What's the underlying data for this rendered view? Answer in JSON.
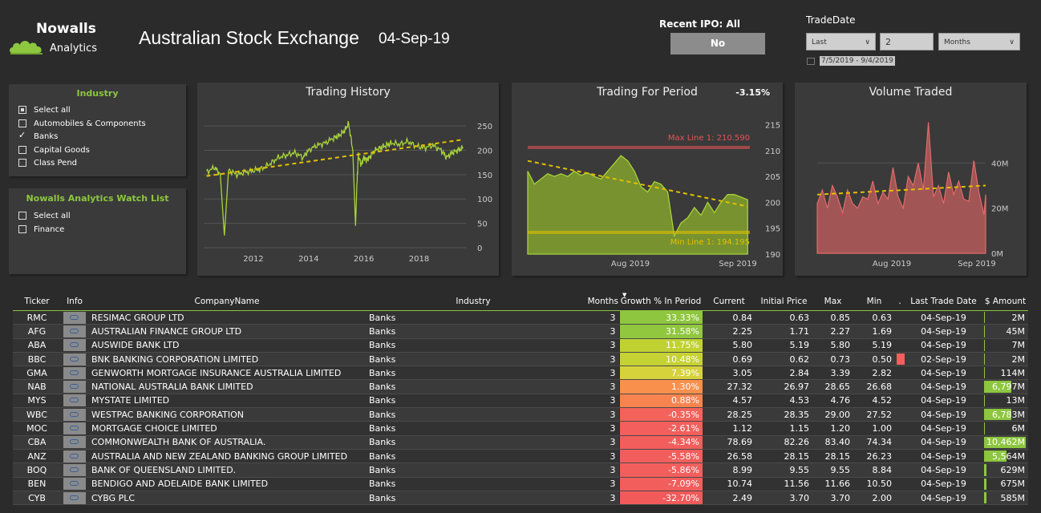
{
  "brand": {
    "name": "Nowalls",
    "sub": "Analytics"
  },
  "header": {
    "title": "Australian Stock Exchange",
    "date": "04-Sep-19"
  },
  "ipo": {
    "label": "Recent IPO: All",
    "button": "No"
  },
  "tradedate": {
    "label": "TradeDate",
    "mode": "Last",
    "count": "2",
    "unit": "Months",
    "range": "7/5/2019 - 9/4/2019"
  },
  "industry_filter": {
    "title": "Industry",
    "items": [
      {
        "label": "Select all",
        "state": "partial"
      },
      {
        "label": "Automobiles & Components",
        "state": "off"
      },
      {
        "label": "Banks",
        "state": "checked"
      },
      {
        "label": "Capital Goods",
        "state": "off"
      },
      {
        "label": "Class Pend",
        "state": "off"
      }
    ]
  },
  "watch_filter": {
    "title": "Nowalls Analytics Watch List",
    "items": [
      {
        "label": "Select all",
        "state": "off"
      },
      {
        "label": "Finance",
        "state": "off"
      }
    ]
  },
  "colors": {
    "accent": "#8dc63f",
    "max_line": "#e05555",
    "min_line": "#e3c000",
    "trend": "#e3c000",
    "volume": "#e36a6a"
  },
  "chart_data": [
    {
      "type": "line",
      "title": "Trading History",
      "x_ticks": [
        "2012",
        "2014",
        "2016",
        "2018"
      ],
      "y_ticks": [
        0,
        50,
        100,
        150,
        200,
        250
      ],
      "ylim": [
        0,
        260
      ],
      "xlim": [
        2010.2,
        2019.7
      ],
      "x": [
        2010.3,
        2010.6,
        2010.8,
        2010.95,
        2011.1,
        2011.4,
        2011.7,
        2012.0,
        2012.3,
        2012.6,
        2012.9,
        2013.2,
        2013.5,
        2013.8,
        2014.0,
        2014.3,
        2014.6,
        2014.9,
        2015.1,
        2015.3,
        2015.45,
        2015.6,
        2015.7,
        2015.75,
        2015.8,
        2015.9,
        2016.0,
        2016.1,
        2016.2,
        2016.4,
        2016.6,
        2016.8,
        2017.0,
        2017.3,
        2017.6,
        2017.9,
        2018.2,
        2018.5,
        2018.8,
        2019.0,
        2019.2,
        2019.4,
        2019.6
      ],
      "y": [
        155,
        165,
        150,
        25,
        160,
        150,
        155,
        158,
        162,
        172,
        185,
        190,
        195,
        185,
        200,
        210,
        215,
        225,
        230,
        240,
        255,
        200,
        45,
        130,
        190,
        170,
        185,
        180,
        185,
        200,
        205,
        210,
        215,
        212,
        218,
        208,
        205,
        210,
        200,
        185,
        195,
        200,
        205
      ],
      "trend": {
        "x": [
          2010.3,
          2019.6
        ],
        "y": [
          147,
          222
        ]
      }
    },
    {
      "type": "area",
      "title": "Trading For Period",
      "annotation": "-3.15%",
      "x_ticks": [
        "Aug 2019",
        "Sep 2019"
      ],
      "y_ticks": [
        190,
        195,
        200,
        205,
        210,
        215
      ],
      "ylim": [
        190,
        216
      ],
      "xlim": [
        0,
        1
      ],
      "x": [
        0,
        0.03,
        0.06,
        0.09,
        0.12,
        0.15,
        0.18,
        0.21,
        0.24,
        0.27,
        0.3,
        0.33,
        0.36,
        0.39,
        0.42,
        0.45,
        0.48,
        0.51,
        0.54,
        0.57,
        0.6,
        0.63,
        0.66,
        0.69,
        0.72,
        0.75,
        0.78,
        0.81,
        0.84,
        0.87,
        0.9,
        0.93,
        0.96,
        0.99
      ],
      "y": [
        206,
        203.5,
        204.5,
        205.5,
        205,
        205.5,
        205,
        206,
        205.2,
        205.7,
        205,
        204.5,
        206,
        207.5,
        209,
        208,
        206,
        203,
        202,
        204,
        203.5,
        202,
        193.5,
        196,
        197,
        199,
        197.5,
        200,
        198,
        200,
        201.5,
        201.5,
        201,
        200.5
      ],
      "max_line": {
        "value": 210.59,
        "label": "Max Line 1: 210.590"
      },
      "min_line": {
        "value": 194.195,
        "label": "Min Line 1: 194.195"
      },
      "trend": {
        "x": [
          0,
          0.99
        ],
        "y": [
          208,
          199.2
        ]
      }
    },
    {
      "type": "area",
      "title": "Volume Traded",
      "x_ticks": [
        "Aug 2019",
        "Sep 2019"
      ],
      "y_ticks_labels": [
        "0M",
        "20M",
        "40M"
      ],
      "y_ticks": [
        0,
        20,
        40
      ],
      "ylim": [
        0,
        60
      ],
      "xlim": [
        0,
        1
      ],
      "x": [
        0,
        0.03,
        0.06,
        0.09,
        0.12,
        0.15,
        0.18,
        0.21,
        0.24,
        0.27,
        0.3,
        0.33,
        0.36,
        0.39,
        0.42,
        0.45,
        0.48,
        0.51,
        0.54,
        0.57,
        0.6,
        0.63,
        0.66,
        0.69,
        0.72,
        0.75,
        0.78,
        0.81,
        0.84,
        0.87,
        0.9,
        0.93,
        0.96,
        0.99,
        1.0
      ],
      "y": [
        22,
        28,
        20,
        30,
        25,
        18,
        28,
        22,
        20,
        25,
        24,
        32,
        22,
        27,
        24,
        38,
        25,
        20,
        34,
        30,
        40,
        28,
        58,
        25,
        30,
        22,
        36,
        26,
        32,
        24,
        23,
        41,
        27,
        17,
        26
      ],
      "trend": {
        "x": [
          0,
          1
        ],
        "y": [
          26,
          30
        ]
      }
    }
  ],
  "table": {
    "columns": [
      "Ticker",
      "Info",
      "CompanyName",
      "Industry",
      "Months",
      "Growth % In Period",
      "Current",
      "Initial Price",
      "Max",
      "Min",
      ".",
      "Last Trade Date",
      "$ Amount"
    ],
    "rows": [
      {
        "ticker": "RMC",
        "company": "RESIMAC GROUP LTD",
        "industry": "Banks",
        "months": "3",
        "growth": "33.33%",
        "growth_value": 33.33,
        "current": "0.84",
        "initial": "0.63",
        "max": "0.85",
        "min": "0.63",
        "flag": false,
        "last": "04-Sep-19",
        "amount": "2M",
        "amount_value": 2
      },
      {
        "ticker": "AFG",
        "company": "AUSTRALIAN FINANCE GROUP LTD",
        "industry": "Banks",
        "months": "3",
        "growth": "31.58%",
        "growth_value": 31.58,
        "current": "2.25",
        "initial": "1.71",
        "max": "2.27",
        "min": "1.69",
        "flag": false,
        "last": "04-Sep-19",
        "amount": "45M",
        "amount_value": 45
      },
      {
        "ticker": "ABA",
        "company": "AUSWIDE BANK LTD",
        "industry": "Banks",
        "months": "3",
        "growth": "11.75%",
        "growth_value": 11.75,
        "current": "5.80",
        "initial": "5.19",
        "max": "5.80",
        "min": "5.19",
        "flag": false,
        "last": "04-Sep-19",
        "amount": "7M",
        "amount_value": 7
      },
      {
        "ticker": "BBC",
        "company": "BNK BANKING CORPORATION LIMITED",
        "industry": "Banks",
        "months": "3",
        "growth": "10.48%",
        "growth_value": 10.48,
        "current": "0.69",
        "initial": "0.62",
        "max": "0.73",
        "min": "0.50",
        "flag": true,
        "last": "02-Sep-19",
        "amount": "2M",
        "amount_value": 2
      },
      {
        "ticker": "GMA",
        "company": "GENWORTH MORTGAGE INSURANCE AUSTRALIA LIMITED",
        "industry": "Banks",
        "months": "3",
        "growth": "7.39%",
        "growth_value": 7.39,
        "current": "3.05",
        "initial": "2.84",
        "max": "3.39",
        "min": "2.82",
        "flag": false,
        "last": "04-Sep-19",
        "amount": "114M",
        "amount_value": 114
      },
      {
        "ticker": "NAB",
        "company": "NATIONAL AUSTRALIA BANK LIMITED",
        "industry": "Banks",
        "months": "3",
        "growth": "1.30%",
        "growth_value": 1.3,
        "current": "27.32",
        "initial": "26.97",
        "max": "28.65",
        "min": "26.68",
        "flag": false,
        "last": "04-Sep-19",
        "amount": "6,797M",
        "amount_value": 6797
      },
      {
        "ticker": "MYS",
        "company": "MYSTATE LIMITED",
        "industry": "Banks",
        "months": "3",
        "growth": "0.88%",
        "growth_value": 0.88,
        "current": "4.57",
        "initial": "4.53",
        "max": "4.76",
        "min": "4.52",
        "flag": false,
        "last": "04-Sep-19",
        "amount": "13M",
        "amount_value": 13
      },
      {
        "ticker": "WBC",
        "company": "WESTPAC BANKING CORPORATION",
        "industry": "Banks",
        "months": "3",
        "growth": "-0.35%",
        "growth_value": -0.35,
        "current": "28.25",
        "initial": "28.35",
        "max": "29.00",
        "min": "27.52",
        "flag": false,
        "last": "04-Sep-19",
        "amount": "6,783M",
        "amount_value": 6783
      },
      {
        "ticker": "MOC",
        "company": "MORTGAGE CHOICE LIMITED",
        "industry": "Banks",
        "months": "3",
        "growth": "-2.61%",
        "growth_value": -2.61,
        "current": "1.12",
        "initial": "1.15",
        "max": "1.20",
        "min": "1.00",
        "flag": false,
        "last": "04-Sep-19",
        "amount": "6M",
        "amount_value": 6
      },
      {
        "ticker": "CBA",
        "company": "COMMONWEALTH BANK OF AUSTRALIA.",
        "industry": "Banks",
        "months": "3",
        "growth": "-4.34%",
        "growth_value": -4.34,
        "current": "78.69",
        "initial": "82.26",
        "max": "83.40",
        "min": "74.34",
        "flag": false,
        "last": "04-Sep-19",
        "amount": "10,462M",
        "amount_value": 10462
      },
      {
        "ticker": "ANZ",
        "company": "AUSTRALIA AND NEW ZEALAND BANKING GROUP LIMITED",
        "industry": "Banks",
        "months": "3",
        "growth": "-5.58%",
        "growth_value": -5.58,
        "current": "26.58",
        "initial": "28.15",
        "max": "28.15",
        "min": "26.23",
        "flag": false,
        "last": "04-Sep-19",
        "amount": "5,564M",
        "amount_value": 5564
      },
      {
        "ticker": "BOQ",
        "company": "BANK OF QUEENSLAND LIMITED.",
        "industry": "Banks",
        "months": "3",
        "growth": "-5.86%",
        "growth_value": -5.86,
        "current": "8.99",
        "initial": "9.55",
        "max": "9.55",
        "min": "8.84",
        "flag": false,
        "last": "04-Sep-19",
        "amount": "629M",
        "amount_value": 629
      },
      {
        "ticker": "BEN",
        "company": "BENDIGO AND ADELAIDE BANK LIMITED",
        "industry": "Banks",
        "months": "3",
        "growth": "-7.09%",
        "growth_value": -7.09,
        "current": "10.74",
        "initial": "11.56",
        "max": "11.66",
        "min": "10.50",
        "flag": false,
        "last": "04-Sep-19",
        "amount": "675M",
        "amount_value": 675
      },
      {
        "ticker": "CYB",
        "company": "CYBG PLC",
        "industry": "Banks",
        "months": "3",
        "growth": "-32.70%",
        "growth_value": -32.7,
        "current": "2.49",
        "initial": "3.70",
        "max": "3.70",
        "min": "2.00",
        "flag": false,
        "last": "04-Sep-19",
        "amount": "585M",
        "amount_value": 585
      }
    ]
  }
}
